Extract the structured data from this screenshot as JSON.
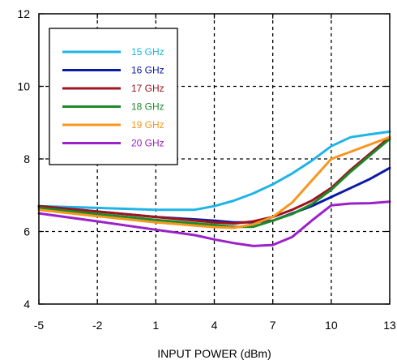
{
  "chart_data": {
    "type": "line",
    "xlabel": "INPUT POWER (dBm)",
    "ylabel": "",
    "xlim": [
      -5,
      13
    ],
    "ylim": [
      4,
      12
    ],
    "xticks": [
      -5,
      -2,
      1,
      4,
      7,
      10,
      13
    ],
    "yticks": [
      4,
      6,
      8,
      10,
      12
    ],
    "grid": true,
    "legend": "top-left",
    "series": [
      {
        "name": "15 GHz",
        "color": "#1fb4e6",
        "points": [
          [
            -5,
            6.7
          ],
          [
            -2,
            6.65
          ],
          [
            1,
            6.6
          ],
          [
            3,
            6.6
          ],
          [
            4,
            6.7
          ],
          [
            5,
            6.85
          ],
          [
            6,
            7.05
          ],
          [
            7,
            7.3
          ],
          [
            8,
            7.6
          ],
          [
            9,
            7.95
          ],
          [
            10,
            8.35
          ],
          [
            11,
            8.6
          ],
          [
            12,
            8.68
          ],
          [
            13,
            8.75
          ]
        ]
      },
      {
        "name": "16 GHz",
        "color": "#0a1aa8",
        "points": [
          [
            -5,
            6.7
          ],
          [
            -2,
            6.55
          ],
          [
            1,
            6.4
          ],
          [
            4,
            6.3
          ],
          [
            5,
            6.25
          ],
          [
            6,
            6.25
          ],
          [
            7,
            6.3
          ],
          [
            8,
            6.5
          ],
          [
            9,
            6.7
          ],
          [
            10,
            6.95
          ],
          [
            11,
            7.2
          ],
          [
            12,
            7.45
          ],
          [
            13,
            7.75
          ]
        ]
      },
      {
        "name": "17 GHz",
        "color": "#a0141e",
        "points": [
          [
            -5,
            6.7
          ],
          [
            -2,
            6.55
          ],
          [
            1,
            6.4
          ],
          [
            4,
            6.25
          ],
          [
            5,
            6.22
          ],
          [
            6,
            6.28
          ],
          [
            7,
            6.4
          ],
          [
            8,
            6.6
          ],
          [
            9,
            6.85
          ],
          [
            10,
            7.2
          ],
          [
            11,
            7.7
          ],
          [
            12,
            8.15
          ],
          [
            13,
            8.6
          ]
        ]
      },
      {
        "name": "18 GHz",
        "color": "#1a8a2a",
        "points": [
          [
            -5,
            6.65
          ],
          [
            -2,
            6.48
          ],
          [
            1,
            6.32
          ],
          [
            4,
            6.18
          ],
          [
            5,
            6.13
          ],
          [
            6,
            6.13
          ],
          [
            7,
            6.3
          ],
          [
            8,
            6.48
          ],
          [
            9,
            6.75
          ],
          [
            10,
            7.15
          ],
          [
            11,
            7.65
          ],
          [
            12,
            8.1
          ],
          [
            13,
            8.55
          ]
        ]
      },
      {
        "name": "19 GHz",
        "color": "#f7961e",
        "points": [
          [
            -5,
            6.6
          ],
          [
            -2,
            6.42
          ],
          [
            1,
            6.25
          ],
          [
            4,
            6.12
          ],
          [
            5,
            6.1
          ],
          [
            6,
            6.2
          ],
          [
            7,
            6.4
          ],
          [
            8,
            6.8
          ],
          [
            9,
            7.4
          ],
          [
            10,
            8.0
          ],
          [
            11,
            8.2
          ],
          [
            12,
            8.4
          ],
          [
            13,
            8.6
          ]
        ]
      },
      {
        "name": "20 GHz",
        "color": "#9a22c8",
        "points": [
          [
            -5,
            6.5
          ],
          [
            -2,
            6.28
          ],
          [
            1,
            6.05
          ],
          [
            3,
            5.9
          ],
          [
            4,
            5.78
          ],
          [
            5,
            5.68
          ],
          [
            6,
            5.6
          ],
          [
            7,
            5.63
          ],
          [
            8,
            5.85
          ],
          [
            9,
            6.3
          ],
          [
            10,
            6.72
          ],
          [
            11,
            6.77
          ],
          [
            12,
            6.78
          ],
          [
            13,
            6.82
          ]
        ]
      }
    ]
  }
}
